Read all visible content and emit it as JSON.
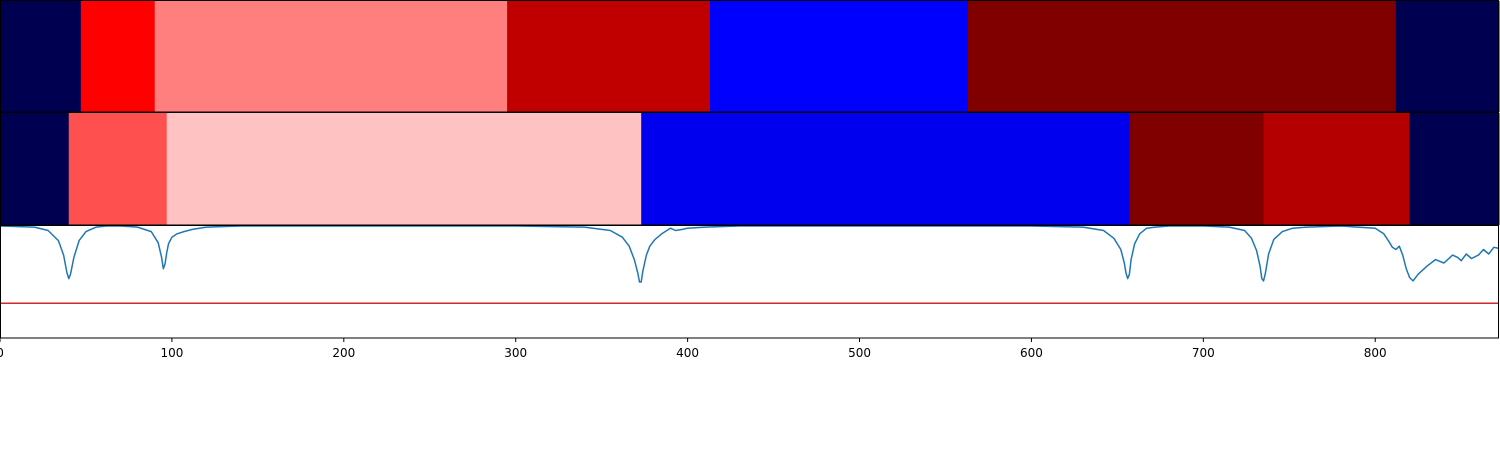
{
  "chart_data": {
    "type": "heatmap",
    "xlim": [
      0,
      872
    ],
    "x_ticks": [
      0,
      100,
      200,
      300,
      400,
      500,
      600,
      700,
      800
    ],
    "x_tick_labels": [
      "0",
      "100",
      "200",
      "300",
      "400",
      "500",
      "600",
      "700",
      "800"
    ],
    "segment_rows": [
      {
        "segments": [
          {
            "start": 0,
            "end": 47,
            "color": "#000050"
          },
          {
            "start": 47,
            "end": 90,
            "color": "#ff0000"
          },
          {
            "start": 90,
            "end": 295,
            "color": "#ff7f7f"
          },
          {
            "start": 295,
            "end": 413,
            "color": "#c00000"
          },
          {
            "start": 413,
            "end": 563,
            "color": "#0000ff"
          },
          {
            "start": 563,
            "end": 812,
            "color": "#800000"
          },
          {
            "start": 812,
            "end": 872,
            "color": "#000050"
          }
        ]
      },
      {
        "segments": [
          {
            "start": 0,
            "end": 40,
            "color": "#000050"
          },
          {
            "start": 40,
            "end": 97,
            "color": "#ff5050"
          },
          {
            "start": 97,
            "end": 373,
            "color": "#ffc2c2"
          },
          {
            "start": 373,
            "end": 657,
            "color": "#0000ef"
          },
          {
            "start": 657,
            "end": 735,
            "color": "#800000"
          },
          {
            "start": 735,
            "end": 820,
            "color": "#b40000"
          },
          {
            "start": 820,
            "end": 872,
            "color": "#000050"
          }
        ]
      }
    ],
    "line_plot": {
      "ylim": [
        0,
        1
      ],
      "threshold": 0.31,
      "threshold_color": "#d62728",
      "line_color": "#1f77b4",
      "series": {
        "x": [
          0,
          20,
          28,
          34,
          37,
          39,
          40,
          41,
          43,
          46,
          50,
          56,
          62,
          70,
          80,
          88,
          92,
          94,
          95,
          96,
          97,
          98,
          100,
          103,
          107,
          112,
          120,
          140,
          200,
          300,
          340,
          355,
          362,
          366,
          369,
          371,
          372,
          373,
          374,
          376,
          378,
          381,
          385,
          390,
          393,
          397,
          400,
          410,
          430,
          500,
          600,
          630,
          642,
          648,
          652,
          654,
          655,
          656,
          657,
          658,
          660,
          663,
          667,
          672,
          680,
          700,
          715,
          724,
          728,
          731,
          733,
          734,
          735,
          736,
          738,
          741,
          746,
          752,
          760,
          780,
          800,
          805,
          808,
          810,
          812,
          814,
          816,
          818,
          820,
          822,
          825,
          830,
          835,
          840,
          845,
          848,
          850,
          853,
          856,
          860,
          863,
          866,
          869,
          872
        ],
        "y": [
          1.0,
          0.99,
          0.96,
          0.87,
          0.74,
          0.58,
          0.53,
          0.57,
          0.72,
          0.87,
          0.95,
          0.99,
          1.0,
          1.0,
          0.99,
          0.95,
          0.85,
          0.72,
          0.62,
          0.66,
          0.76,
          0.84,
          0.9,
          0.93,
          0.95,
          0.97,
          0.99,
          1.0,
          1.0,
          1.0,
          0.99,
          0.96,
          0.9,
          0.82,
          0.7,
          0.58,
          0.5,
          0.5,
          0.6,
          0.74,
          0.82,
          0.88,
          0.93,
          0.98,
          0.96,
          0.97,
          0.98,
          0.99,
          1.0,
          1.0,
          1.0,
          0.99,
          0.96,
          0.89,
          0.79,
          0.67,
          0.58,
          0.53,
          0.57,
          0.7,
          0.84,
          0.93,
          0.98,
          0.99,
          1.0,
          1.0,
          0.99,
          0.96,
          0.89,
          0.78,
          0.64,
          0.53,
          0.51,
          0.57,
          0.75,
          0.88,
          0.95,
          0.98,
          0.99,
          1.0,
          0.98,
          0.93,
          0.86,
          0.81,
          0.79,
          0.82,
          0.74,
          0.62,
          0.54,
          0.51,
          0.57,
          0.64,
          0.7,
          0.67,
          0.74,
          0.72,
          0.69,
          0.75,
          0.71,
          0.74,
          0.79,
          0.75,
          0.81,
          0.8
        ]
      }
    }
  }
}
